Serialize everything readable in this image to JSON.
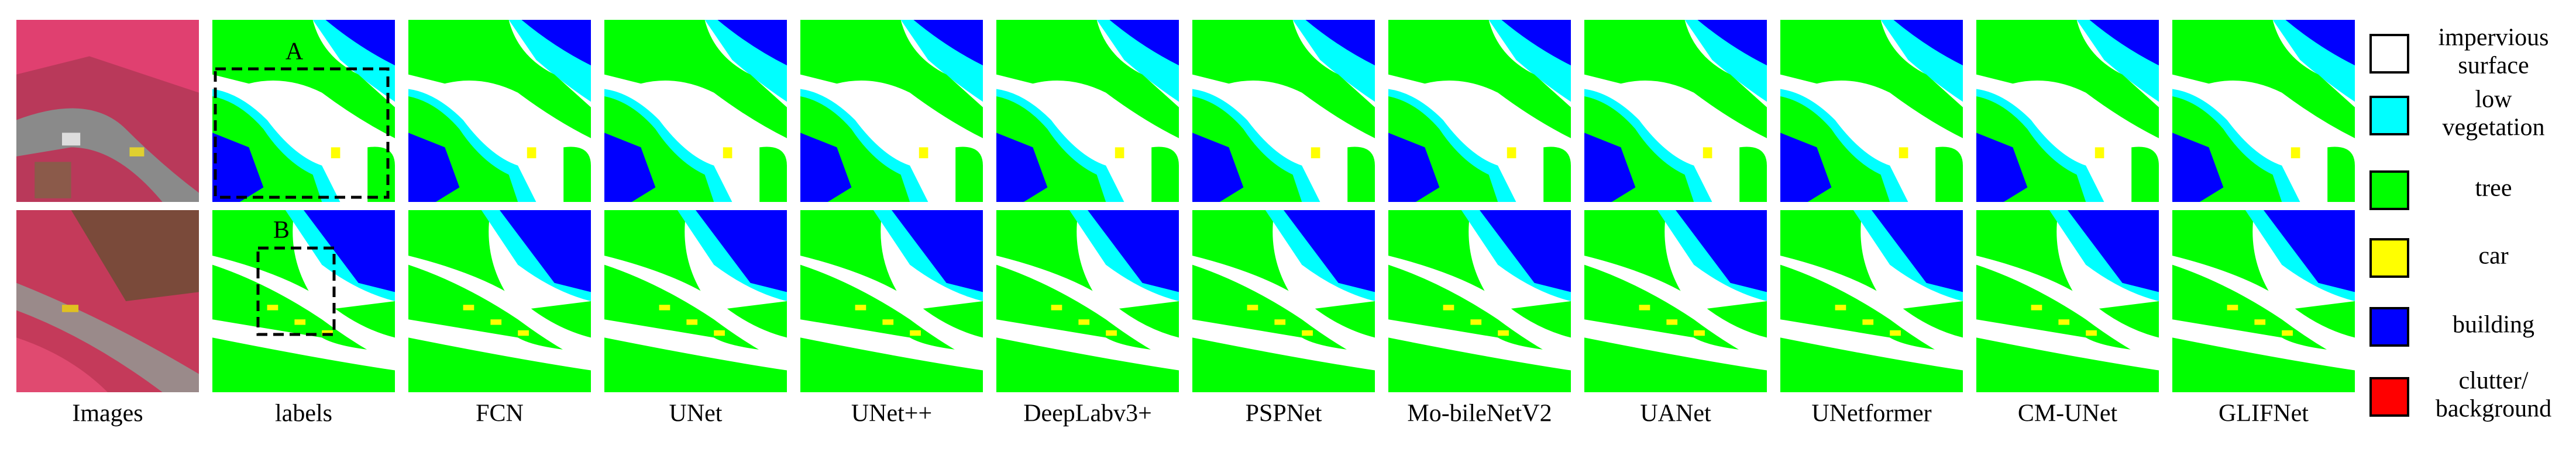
{
  "columns": [
    "Images",
    "labels",
    "FCN",
    "UNet",
    "UNet++",
    "DeepLabv3+",
    "PSPNet",
    "Mo-bileNetV2",
    "UANet",
    "UNetformer",
    "CM-UNet",
    "GLIFNet"
  ],
  "annotations": [
    "A",
    "B"
  ],
  "legend": [
    {
      "lines": [
        "impervious",
        "surface"
      ],
      "color": "#ffffff"
    },
    {
      "lines": [
        "low",
        "vegetation"
      ],
      "color": "#00ffff"
    },
    {
      "lines": [
        "tree"
      ],
      "color": "#00ff00"
    },
    {
      "lines": [
        "car"
      ],
      "color": "#ffff00"
    },
    {
      "lines": [
        "building"
      ],
      "color": "#0000ff"
    },
    {
      "lines": [
        "clutter/",
        "background"
      ],
      "color": "#ff0000"
    }
  ]
}
